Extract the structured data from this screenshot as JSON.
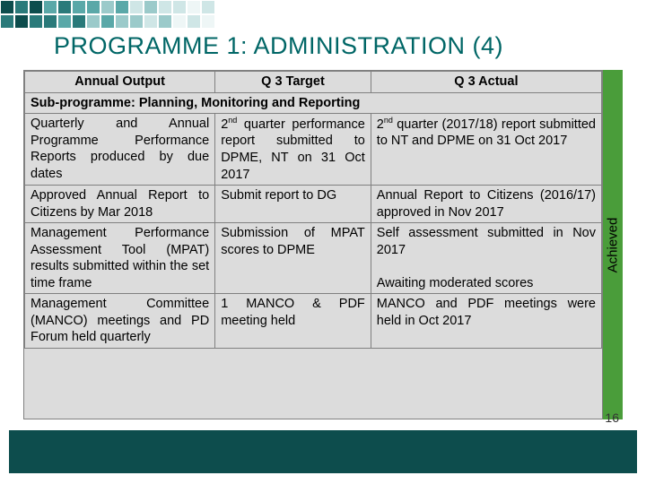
{
  "title": "PROGRAMME 1: ADMINISTRATION (4)",
  "page_number": "16",
  "achieved_label": "Achieved",
  "colors": {
    "teal_dark": "#0d4d4d",
    "teal_mid": "#2a7a7a",
    "teal_light": "#5aa8a8",
    "green": "#4a9d3a",
    "header_bg": "#dcdcdc",
    "border": "#808080"
  },
  "table": {
    "headers": [
      "Annual Output",
      "Q 3 Target",
      "Q 3 Actual"
    ],
    "sub_header": "Sub-programme: Planning, Monitoring and Reporting",
    "rows": [
      {
        "c1": "Quarterly and Annual Programme Performance Reports produced by due dates",
        "c2": "2<sup>nd</sup> quarter performance report submitted to DPME, NT on 31 Oct 2017",
        "c3": "2<sup>nd</sup> quarter (2017/18) report submitted to NT and DPME on 31 Oct 2017"
      },
      {
        "c1": "Approved Annual Report to Citizens by Mar 2018",
        "c2": "Submit report to DG",
        "c3": "Annual Report to Citizens (2016/17) approved in Nov 2017"
      },
      {
        "c1": "Management Performance Assessment Tool (MPAT) results submitted within the set time frame",
        "c2": "Submission of MPAT scores to DPME",
        "c3": "Self assessment submitted in Nov 2017<br><br>Awaiting moderated scores"
      },
      {
        "c1": "Management Committee (MANCO) meetings and PD Forum  held quarterly",
        "c2": "1 MANCO & PDF meeting held",
        "c3": "MANCO and PDF meetings were held in Oct 2017"
      }
    ]
  }
}
